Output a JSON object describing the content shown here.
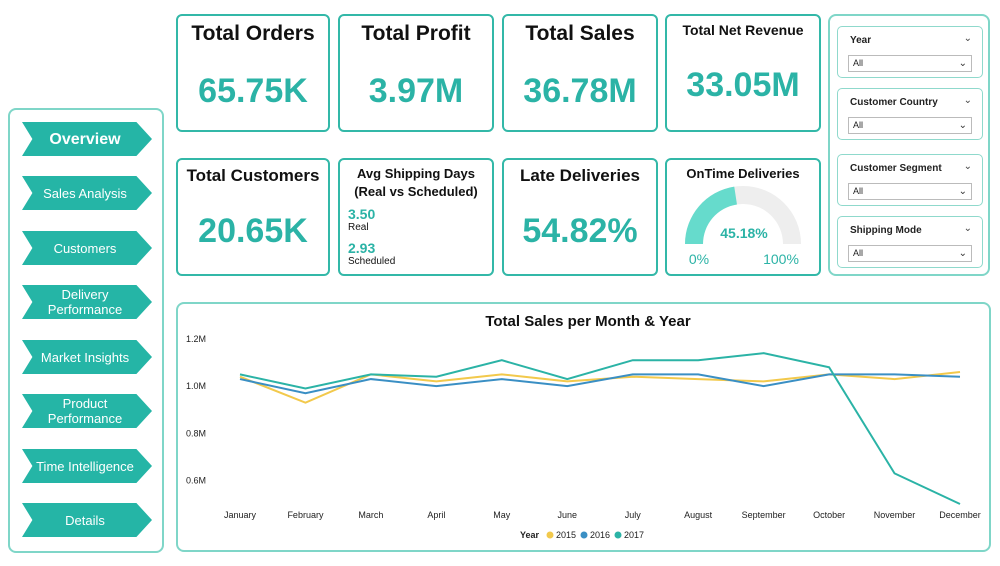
{
  "nav": {
    "items": [
      {
        "label": "Overview"
      },
      {
        "label": "Sales Analysis"
      },
      {
        "label": "Customers"
      },
      {
        "label": "Delivery Performance"
      },
      {
        "label": "Market Insights"
      },
      {
        "label": "Product Performance"
      },
      {
        "label": "Time Intelligence"
      },
      {
        "label": "Details"
      }
    ]
  },
  "kpis": {
    "total_orders": {
      "title": "Total Orders",
      "value": "65.75K"
    },
    "total_profit": {
      "title": "Total Profit",
      "value": "3.97M"
    },
    "total_sales": {
      "title": "Total Sales",
      "value": "36.78M"
    },
    "total_net_revenue": {
      "title": "Total Net Revenue",
      "value": "33.05M"
    },
    "total_customers": {
      "title": "Total Customers",
      "value": "20.65K"
    },
    "avg_shipping": {
      "title_line1": "Avg Shipping Days",
      "title_line2": "(Real vs Scheduled)",
      "real_value": "3.50",
      "real_label": "Real",
      "scheduled_value": "2.93",
      "scheduled_label": "Scheduled"
    },
    "late_deliveries": {
      "title": "Late Deliveries",
      "value": "54.82%"
    },
    "ontime_deliveries": {
      "title": "OnTime Deliveries",
      "value": "45.18%",
      "fraction": 0.4518,
      "min_label": "0%",
      "max_label": "100%"
    }
  },
  "filters": [
    {
      "label": "Year",
      "value": "All"
    },
    {
      "label": "Customer Country",
      "value": "All"
    },
    {
      "label": "Customer Segment",
      "value": "All"
    },
    {
      "label": "Shipping Mode",
      "value": "All"
    }
  ],
  "colors": {
    "accent": "#25b5a6",
    "s2015": "#f2c94c",
    "s2016": "#3a8fc4",
    "s2017": "#2bb3a6",
    "gauge_bg": "#eeeeee",
    "gauge_fill": "#66dbcc"
  },
  "chart_data": {
    "type": "line",
    "title": "Total Sales per Month & Year",
    "categories": [
      "January",
      "February",
      "March",
      "April",
      "May",
      "June",
      "July",
      "August",
      "September",
      "October",
      "November",
      "December"
    ],
    "series": [
      {
        "name": "2015",
        "values": [
          1.04,
          0.93,
          1.05,
          1.02,
          1.05,
          1.02,
          1.04,
          1.03,
          1.02,
          1.05,
          1.03,
          1.06
        ]
      },
      {
        "name": "2016",
        "values": [
          1.03,
          0.97,
          1.03,
          1.0,
          1.03,
          1.0,
          1.05,
          1.05,
          1.0,
          1.05,
          1.05,
          1.04
        ]
      },
      {
        "name": "2017",
        "values": [
          1.05,
          0.99,
          1.05,
          1.04,
          1.11,
          1.03,
          1.11,
          1.11,
          1.14,
          1.08,
          0.63,
          0.5
        ]
      }
    ],
    "y_ticks": [
      "1.2M",
      "1.0M",
      "0.8M",
      "0.6M"
    ],
    "y_tick_values": [
      1.2,
      1.0,
      0.8,
      0.6
    ],
    "ylim": [
      0.5,
      1.2
    ],
    "legend_title": "Year",
    "legend_position": "bottom-center"
  }
}
